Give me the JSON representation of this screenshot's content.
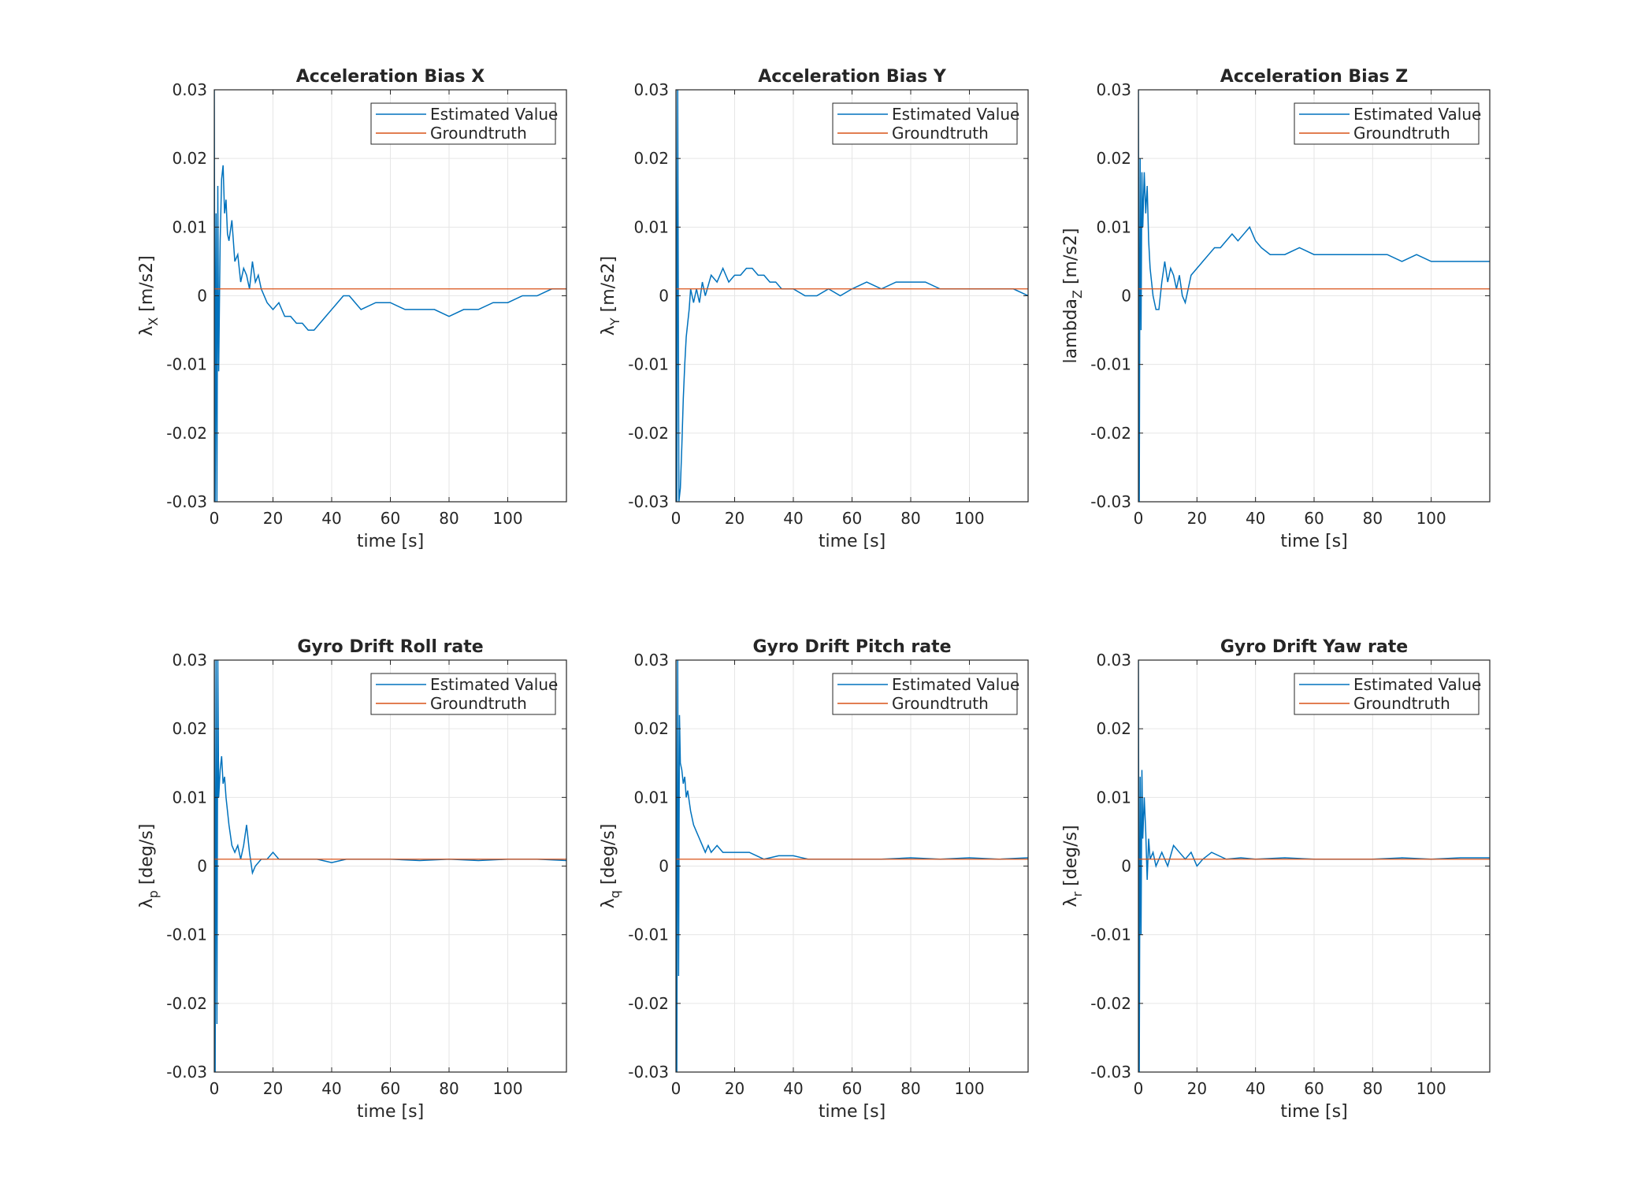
{
  "colors": {
    "estimated": "#0072BD",
    "groundtruth": "#D95319",
    "grid": "#e6e6e6",
    "axis": "#262626"
  },
  "legend_placement": "top-right",
  "chart_data": [
    {
      "type": "line",
      "title": "Acceleration Bias X",
      "xlabel": "time [s]",
      "ylabel": "λX [m/s2]",
      "ylabel_parts": {
        "main": "λ",
        "sub": "X",
        "unit": " [m/s2]"
      },
      "xlim": [
        0,
        120
      ],
      "ylim": [
        -0.03,
        0.03
      ],
      "xticks": [
        "0",
        "20",
        "40",
        "60",
        "80",
        "100"
      ],
      "yticks": [
        "-0.03",
        "-0.02",
        "-0.01",
        "0",
        "0.01",
        "0.02",
        "0.03"
      ],
      "grid": true,
      "series": [
        {
          "name": "Estimated Value",
          "color": "#0072BD",
          "x": [
            0,
            0.3,
            0.6,
            0.9,
            1.2,
            1.5,
            2,
            2.5,
            3,
            3.5,
            4,
            4.5,
            5,
            6,
            7,
            8,
            9,
            10,
            11,
            12,
            13,
            14,
            15,
            16,
            18,
            20,
            22,
            24,
            26,
            28,
            30,
            32,
            34,
            36,
            38,
            40,
            42,
            44,
            46,
            48,
            50,
            55,
            60,
            65,
            70,
            75,
            80,
            85,
            90,
            95,
            100,
            105,
            110,
            115,
            120
          ],
          "y": [
            0.03,
            -0.03,
            0.012,
            -0.03,
            0.016,
            -0.011,
            0.008,
            0.017,
            0.019,
            0.012,
            0.014,
            0.009,
            0.008,
            0.011,
            0.005,
            0.006,
            0.002,
            0.004,
            0.003,
            0.001,
            0.005,
            0.002,
            0.003,
            0.001,
            -0.001,
            -0.002,
            -0.001,
            -0.003,
            -0.003,
            -0.004,
            -0.004,
            -0.005,
            -0.005,
            -0.004,
            -0.003,
            -0.002,
            -0.001,
            0,
            0,
            -0.001,
            -0.002,
            -0.001,
            -0.001,
            -0.002,
            -0.002,
            -0.002,
            -0.003,
            -0.002,
            -0.002,
            -0.001,
            -0.001,
            0,
            0,
            0.001,
            0.001
          ]
        },
        {
          "name": "Groundtruth",
          "color": "#D95319",
          "x": [
            0,
            120
          ],
          "y": [
            0.001,
            0.001
          ]
        }
      ]
    },
    {
      "type": "line",
      "title": "Acceleration Bias Y",
      "xlabel": "time [s]",
      "ylabel": "λY [m/s2]",
      "ylabel_parts": {
        "main": "λ",
        "sub": "Y",
        "unit": " [m/s2]"
      },
      "xlim": [
        0,
        120
      ],
      "ylim": [
        -0.03,
        0.03
      ],
      "xticks": [
        "0",
        "20",
        "40",
        "60",
        "80",
        "100"
      ],
      "yticks": [
        "-0.03",
        "-0.02",
        "-0.01",
        "0",
        "0.01",
        "0.02",
        "0.03"
      ],
      "grid": true,
      "series": [
        {
          "name": "Estimated Value",
          "color": "#0072BD",
          "x": [
            0,
            0.3,
            0.6,
            1,
            1.5,
            2,
            2.5,
            3,
            3.5,
            4,
            4.5,
            5,
            6,
            7,
            8,
            9,
            10,
            12,
            14,
            16,
            18,
            20,
            22,
            24,
            26,
            28,
            30,
            32,
            34,
            36,
            38,
            40,
            44,
            48,
            52,
            56,
            60,
            65,
            70,
            75,
            80,
            85,
            90,
            95,
            100,
            105,
            110,
            115,
            120
          ],
          "y": [
            0.03,
            -0.03,
            0.03,
            -0.03,
            -0.028,
            -0.022,
            -0.015,
            -0.01,
            -0.006,
            -0.004,
            -0.002,
            0.001,
            -0.001,
            0.001,
            -0.001,
            0.002,
            0,
            0.003,
            0.002,
            0.004,
            0.002,
            0.003,
            0.003,
            0.004,
            0.004,
            0.003,
            0.003,
            0.002,
            0.002,
            0.001,
            0.001,
            0.001,
            0,
            0,
            0.001,
            0,
            0.001,
            0.002,
            0.001,
            0.002,
            0.002,
            0.002,
            0.001,
            0.001,
            0.001,
            0.001,
            0.001,
            0.001,
            0
          ]
        },
        {
          "name": "Groundtruth",
          "color": "#D95319",
          "x": [
            0,
            120
          ],
          "y": [
            0.001,
            0.001
          ]
        }
      ]
    },
    {
      "type": "line",
      "title": "Acceleration Bias Z",
      "xlabel": "time [s]",
      "ylabel": "lambdaZ [m/s2]",
      "ylabel_parts": {
        "main": "lambda",
        "sub": "Z",
        "unit": " [m/s2]"
      },
      "xlim": [
        0,
        120
      ],
      "ylim": [
        -0.03,
        0.03
      ],
      "xticks": [
        "0",
        "20",
        "40",
        "60",
        "80",
        "100"
      ],
      "yticks": [
        "-0.03",
        "-0.02",
        "-0.01",
        "0",
        "0.01",
        "0.02",
        "0.03"
      ],
      "grid": true,
      "series": [
        {
          "name": "Estimated Value",
          "color": "#0072BD",
          "x": [
            0,
            0.3,
            0.6,
            0.9,
            1.2,
            1.5,
            2,
            2.5,
            3,
            3.5,
            4,
            4.5,
            5,
            6,
            7,
            8,
            9,
            10,
            11,
            12,
            13,
            14,
            15,
            16,
            18,
            20,
            22,
            24,
            26,
            28,
            30,
            32,
            34,
            36,
            38,
            40,
            42,
            45,
            50,
            55,
            60,
            65,
            70,
            75,
            80,
            85,
            90,
            95,
            100,
            105,
            110,
            115,
            120
          ],
          "y": [
            0.03,
            -0.03,
            0.02,
            -0.005,
            0.018,
            0.01,
            0.018,
            0.012,
            0.016,
            0.008,
            0.004,
            0.002,
            0,
            -0.002,
            -0.002,
            0.002,
            0.005,
            0.002,
            0.004,
            0.003,
            0.001,
            0.003,
            0,
            -0.001,
            0.003,
            0.004,
            0.005,
            0.006,
            0.007,
            0.007,
            0.008,
            0.009,
            0.008,
            0.009,
            0.01,
            0.008,
            0.007,
            0.006,
            0.006,
            0.007,
            0.006,
            0.006,
            0.006,
            0.006,
            0.006,
            0.006,
            0.005,
            0.006,
            0.005,
            0.005,
            0.005,
            0.005,
            0.005
          ]
        },
        {
          "name": "Groundtruth",
          "color": "#D95319",
          "x": [
            0,
            120
          ],
          "y": [
            0.001,
            0.001
          ]
        }
      ]
    },
    {
      "type": "line",
      "title": "Gyro Drift Roll rate",
      "xlabel": "time [s]",
      "ylabel": "λp [deg/s]",
      "ylabel_parts": {
        "main": "λ",
        "sub": "p",
        "unit": " [deg/s]"
      },
      "xlim": [
        0,
        120
      ],
      "ylim": [
        -0.03,
        0.03
      ],
      "xticks": [
        "0",
        "20",
        "40",
        "60",
        "80",
        "100"
      ],
      "yticks": [
        "-0.03",
        "-0.02",
        "-0.01",
        "0",
        "0.01",
        "0.02",
        "0.03"
      ],
      "grid": true,
      "series": [
        {
          "name": "Estimated Value",
          "color": "#0072BD",
          "x": [
            0,
            0.3,
            0.6,
            0.9,
            1.2,
            1.5,
            2,
            2.5,
            3,
            3.5,
            4,
            5,
            6,
            7,
            8,
            9,
            10,
            11,
            12,
            13,
            14,
            16,
            18,
            20,
            22,
            25,
            30,
            35,
            40,
            45,
            50,
            60,
            70,
            80,
            90,
            100,
            110,
            120
          ],
          "y": [
            0.03,
            -0.03,
            0.03,
            -0.023,
            0.03,
            0.01,
            0.014,
            0.016,
            0.012,
            0.013,
            0.01,
            0.006,
            0.003,
            0.002,
            0.003,
            0.001,
            0.003,
            0.006,
            0.002,
            -0.001,
            0,
            0.001,
            0.001,
            0.002,
            0.001,
            0.001,
            0.001,
            0.001,
            0.0005,
            0.001,
            0.001,
            0.001,
            0.0008,
            0.001,
            0.0008,
            0.001,
            0.001,
            0.0008
          ]
        },
        {
          "name": "Groundtruth",
          "color": "#D95319",
          "x": [
            0,
            120
          ],
          "y": [
            0.001,
            0.001
          ]
        }
      ]
    },
    {
      "type": "line",
      "title": "Gyro Drift Pitch rate",
      "xlabel": "time [s]",
      "ylabel": "λq [deg/s]",
      "ylabel_parts": {
        "main": "λ",
        "sub": "q",
        "unit": " [deg/s]"
      },
      "xlim": [
        0,
        120
      ],
      "ylim": [
        -0.03,
        0.03
      ],
      "xticks": [
        "0",
        "20",
        "40",
        "60",
        "80",
        "100"
      ],
      "yticks": [
        "-0.03",
        "-0.02",
        "-0.01",
        "0",
        "0.01",
        "0.02",
        "0.03"
      ],
      "grid": true,
      "series": [
        {
          "name": "Estimated Value",
          "color": "#0072BD",
          "x": [
            0,
            0.3,
            0.6,
            0.9,
            1.2,
            1.5,
            2,
            2.5,
            3,
            3.5,
            4,
            5,
            6,
            7,
            8,
            9,
            10,
            11,
            12,
            14,
            16,
            18,
            20,
            25,
            30,
            35,
            40,
            45,
            50,
            60,
            70,
            80,
            90,
            100,
            110,
            120
          ],
          "y": [
            0.03,
            -0.03,
            0.03,
            -0.016,
            0.022,
            0.015,
            0.014,
            0.012,
            0.013,
            0.01,
            0.011,
            0.008,
            0.006,
            0.005,
            0.004,
            0.003,
            0.002,
            0.003,
            0.002,
            0.003,
            0.002,
            0.002,
            0.002,
            0.002,
            0.001,
            0.0015,
            0.0015,
            0.001,
            0.001,
            0.001,
            0.001,
            0.0012,
            0.001,
            0.0012,
            0.001,
            0.0012
          ]
        },
        {
          "name": "Groundtruth",
          "color": "#D95319",
          "x": [
            0,
            120
          ],
          "y": [
            0.001,
            0.001
          ]
        }
      ]
    },
    {
      "type": "line",
      "title": "Gyro Drift Yaw rate",
      "xlabel": "time [s]",
      "ylabel": "λr [deg/s]",
      "ylabel_parts": {
        "main": "λ",
        "sub": "r",
        "unit": " [deg/s]"
      },
      "xlim": [
        0,
        120
      ],
      "ylim": [
        -0.03,
        0.03
      ],
      "xticks": [
        "0",
        "20",
        "40",
        "60",
        "80",
        "100"
      ],
      "yticks": [
        "-0.03",
        "-0.02",
        "-0.01",
        "0",
        "0.01",
        "0.02",
        "0.03"
      ],
      "grid": true,
      "series": [
        {
          "name": "Estimated Value",
          "color": "#0072BD",
          "x": [
            0,
            0.3,
            0.6,
            0.9,
            1.2,
            1.5,
            2,
            2.5,
            3,
            3.5,
            4,
            5,
            6,
            7,
            8,
            9,
            10,
            12,
            14,
            16,
            18,
            20,
            22,
            25,
            30,
            35,
            40,
            50,
            60,
            70,
            80,
            90,
            100,
            110,
            120
          ],
          "y": [
            0.03,
            -0.03,
            0.013,
            -0.01,
            0.014,
            0.004,
            0.01,
            0.005,
            -0.002,
            0.004,
            0.001,
            0.002,
            0,
            0.001,
            0.002,
            0.001,
            0,
            0.003,
            0.002,
            0.001,
            0.002,
            0,
            0.001,
            0.002,
            0.001,
            0.0012,
            0.001,
            0.0012,
            0.001,
            0.001,
            0.001,
            0.0012,
            0.001,
            0.0012,
            0.0012
          ]
        },
        {
          "name": "Groundtruth",
          "color": "#D95319",
          "x": [
            0,
            120
          ],
          "y": [
            0.001,
            0.001
          ]
        }
      ]
    }
  ]
}
